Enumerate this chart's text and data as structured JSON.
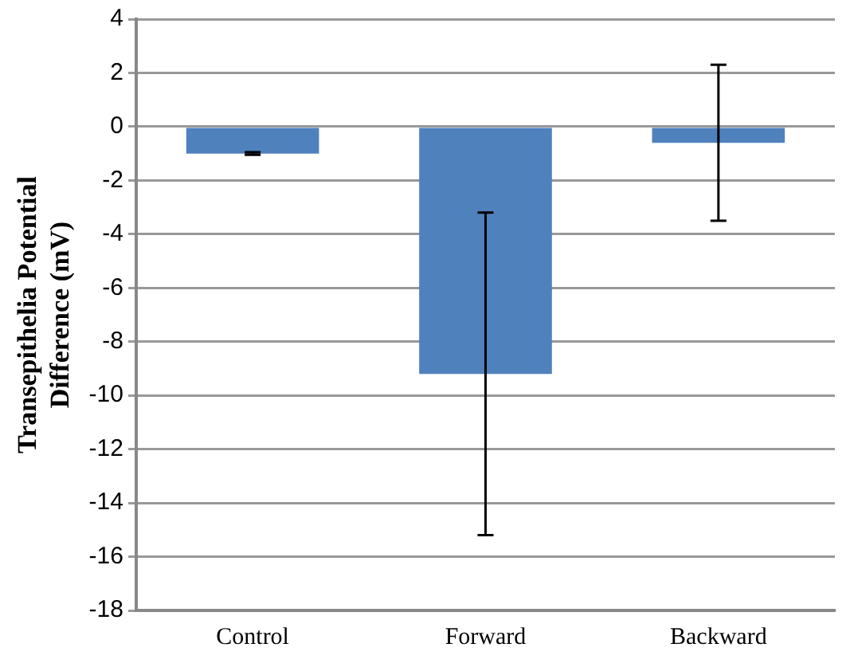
{
  "chart_data": {
    "type": "bar",
    "ylabel": "Transepithelia Potential Difference (mV)",
    "categories": [
      "Control",
      "Forward",
      "Backward"
    ],
    "values": [
      -1.0,
      -9.2,
      -0.6
    ],
    "errors": [
      0.05,
      6.0,
      2.9
    ],
    "color": "#4f81bd",
    "ylim": [
      -18,
      4
    ],
    "yticks": [
      -18,
      -16,
      -14,
      -12,
      -10,
      -8,
      -6,
      -4,
      -2,
      0,
      2,
      4
    ],
    "grid": "y"
  }
}
